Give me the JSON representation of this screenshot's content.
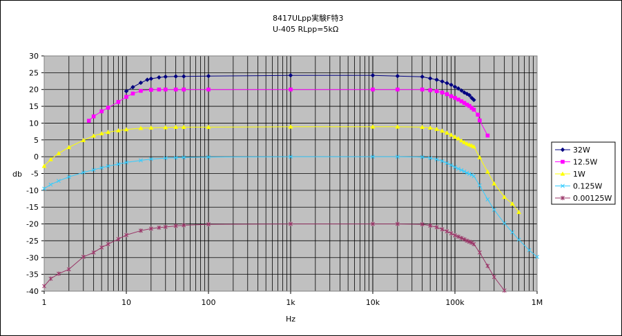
{
  "chart_data": {
    "type": "line",
    "title": "8417ULpp実験F特3",
    "subtitle": "U-405 RLpp=5kΩ",
    "xlabel": "Hz",
    "ylabel": "db",
    "x_scale": "log",
    "xlim": [
      1,
      1000000
    ],
    "ylim": [
      -40,
      30
    ],
    "grid": true,
    "legend_position": "right",
    "x_ticks": [
      {
        "value": 1,
        "label": "1"
      },
      {
        "value": 10,
        "label": "10"
      },
      {
        "value": 100,
        "label": "100"
      },
      {
        "value": 1000,
        "label": "1k"
      },
      {
        "value": 10000,
        "label": "10k"
      },
      {
        "value": 100000,
        "label": "100k"
      },
      {
        "value": 1000000,
        "label": "1M"
      }
    ],
    "y_ticks": [
      30,
      25,
      20,
      15,
      10,
      5,
      0,
      -5,
      -10,
      -15,
      -20,
      -25,
      -30,
      -35,
      -40
    ],
    "series": [
      {
        "name": "32W",
        "color": "#000080",
        "marker": "diamond",
        "x": [
          10,
          12,
          15,
          18,
          20,
          25,
          30,
          40,
          50,
          100,
          1000,
          10000,
          20000,
          40000,
          50000,
          60000,
          70000,
          80000,
          90000,
          100000,
          110000,
          120000,
          130000,
          140000,
          150000,
          160000,
          170000
        ],
        "y": [
          19.5,
          20.7,
          22.0,
          22.9,
          23.2,
          23.6,
          23.8,
          23.9,
          23.9,
          24.0,
          24.2,
          24.2,
          24.0,
          23.8,
          23.3,
          22.9,
          22.4,
          21.9,
          21.4,
          20.8,
          20.3,
          19.7,
          19.1,
          18.7,
          18.3,
          17.5,
          16.9
        ]
      },
      {
        "name": "12.5W",
        "color": "#ff00ff",
        "marker": "square",
        "x": [
          3.5,
          4,
          5,
          6,
          8,
          10,
          12,
          15,
          20,
          25,
          30,
          40,
          50,
          100,
          1000,
          10000,
          20000,
          40000,
          50000,
          60000,
          70000,
          80000,
          90000,
          100000,
          110000,
          120000,
          130000,
          140000,
          150000,
          160000,
          170000,
          190000,
          200000,
          250000
        ],
        "y": [
          10.7,
          12.0,
          13.5,
          14.6,
          16.3,
          17.8,
          18.8,
          19.6,
          19.9,
          20.0,
          20.0,
          20.0,
          20.0,
          20.0,
          20.0,
          20.0,
          20.0,
          20.0,
          19.8,
          19.5,
          19.1,
          18.6,
          18.0,
          17.5,
          17.0,
          16.5,
          16.0,
          15.5,
          15.1,
          14.5,
          14.0,
          12.5,
          10.8,
          6.3
        ]
      },
      {
        "name": "1W",
        "color": "#ffff00",
        "marker": "triangle",
        "x": [
          1,
          1.2,
          1.5,
          2,
          3,
          4,
          5,
          6,
          8,
          10,
          15,
          20,
          30,
          40,
          50,
          100,
          1000,
          10000,
          20000,
          40000,
          50000,
          60000,
          70000,
          80000,
          90000,
          100000,
          110000,
          120000,
          130000,
          140000,
          150000,
          160000,
          170000,
          200000,
          250000,
          300000,
          400000,
          500000,
          600000
        ],
        "y": [
          -2.8,
          -0.8,
          1.0,
          2.8,
          4.9,
          6.2,
          6.9,
          7.3,
          7.8,
          8.1,
          8.5,
          8.6,
          8.7,
          8.8,
          8.8,
          8.8,
          8.9,
          8.9,
          8.9,
          8.8,
          8.6,
          8.2,
          7.7,
          7.1,
          6.5,
          5.9,
          5.4,
          4.8,
          4.3,
          3.9,
          3.6,
          3.3,
          3.0,
          -0.2,
          -4.5,
          -8.0,
          -12.0,
          -14.0,
          -16.5
        ]
      },
      {
        "name": "0.125W",
        "color": "#33ccff",
        "marker": "x",
        "x": [
          1,
          1.2,
          1.5,
          2,
          3,
          4,
          5,
          6,
          8,
          10,
          15,
          20,
          30,
          40,
          50,
          100,
          1000,
          10000,
          20000,
          40000,
          50000,
          60000,
          70000,
          80000,
          90000,
          100000,
          110000,
          120000,
          130000,
          140000,
          150000,
          160000,
          170000,
          200000,
          250000,
          300000,
          400000,
          500000,
          600000,
          800000,
          1000000
        ],
        "y": [
          -9.5,
          -8.3,
          -7.2,
          -6.0,
          -4.7,
          -3.9,
          -3.3,
          -2.8,
          -2.2,
          -1.7,
          -1.1,
          -0.7,
          -0.4,
          -0.3,
          -0.2,
          -0.1,
          0.0,
          0.0,
          0.0,
          -0.1,
          -0.4,
          -0.8,
          -1.3,
          -1.9,
          -2.5,
          -3.1,
          -3.6,
          -4.0,
          -4.4,
          -4.8,
          -5.1,
          -5.4,
          -5.8,
          -8.5,
          -12.7,
          -15.8,
          -19.8,
          -22.5,
          -24.7,
          -27.8,
          -29.8
        ]
      },
      {
        "name": "0.00125W",
        "color": "#993366",
        "marker": "star",
        "x": [
          1,
          1.2,
          1.5,
          2,
          3,
          4,
          5,
          6,
          8,
          10,
          15,
          20,
          25,
          30,
          40,
          50,
          100,
          1000,
          10000,
          20000,
          40000,
          50000,
          60000,
          70000,
          80000,
          90000,
          100000,
          110000,
          120000,
          130000,
          140000,
          150000,
          160000,
          170000,
          200000,
          250000,
          300000,
          400000
        ],
        "y": [
          -38.5,
          -36.3,
          -34.8,
          -33.5,
          -29.8,
          -28.5,
          -27.0,
          -26.0,
          -24.5,
          -23.3,
          -22.0,
          -21.4,
          -21.1,
          -20.9,
          -20.6,
          -20.4,
          -20.1,
          -20.0,
          -20.0,
          -20.0,
          -20.1,
          -20.5,
          -21.0,
          -21.6,
          -22.2,
          -22.8,
          -23.4,
          -23.8,
          -24.2,
          -24.6,
          -25.0,
          -25.3,
          -25.6,
          -26.0,
          -28.5,
          -32.5,
          -35.8,
          -39.8
        ]
      }
    ]
  }
}
